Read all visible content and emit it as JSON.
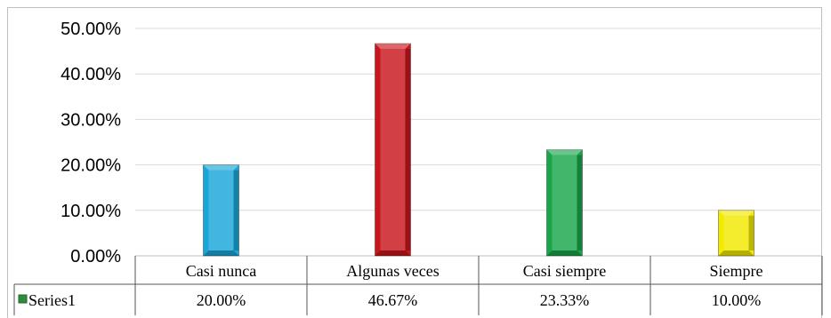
{
  "chart_data": {
    "type": "bar",
    "categories": [
      "Casi nunca",
      "Algunas veces",
      "Casi siempre",
      "Siempre"
    ],
    "series": [
      {
        "name": "Series1",
        "values": [
          20.0,
          46.67,
          23.33,
          10.0
        ],
        "value_labels": [
          "20.00%",
          "46.67%",
          "23.33%",
          "10.00%"
        ]
      }
    ],
    "bar_colors": [
      "#1aa6d8",
      "#c8161d",
      "#19a64a",
      "#f2ea00"
    ],
    "y_ticks": [
      "0.00%",
      "10.00%",
      "20.00%",
      "30.00%",
      "40.00%",
      "50.00%"
    ],
    "ylim": [
      0,
      50
    ],
    "grid": true,
    "legend_placement": "data-table",
    "gridline_color": "#d9d9d9",
    "legend_key_color": "#2e8b3c"
  }
}
